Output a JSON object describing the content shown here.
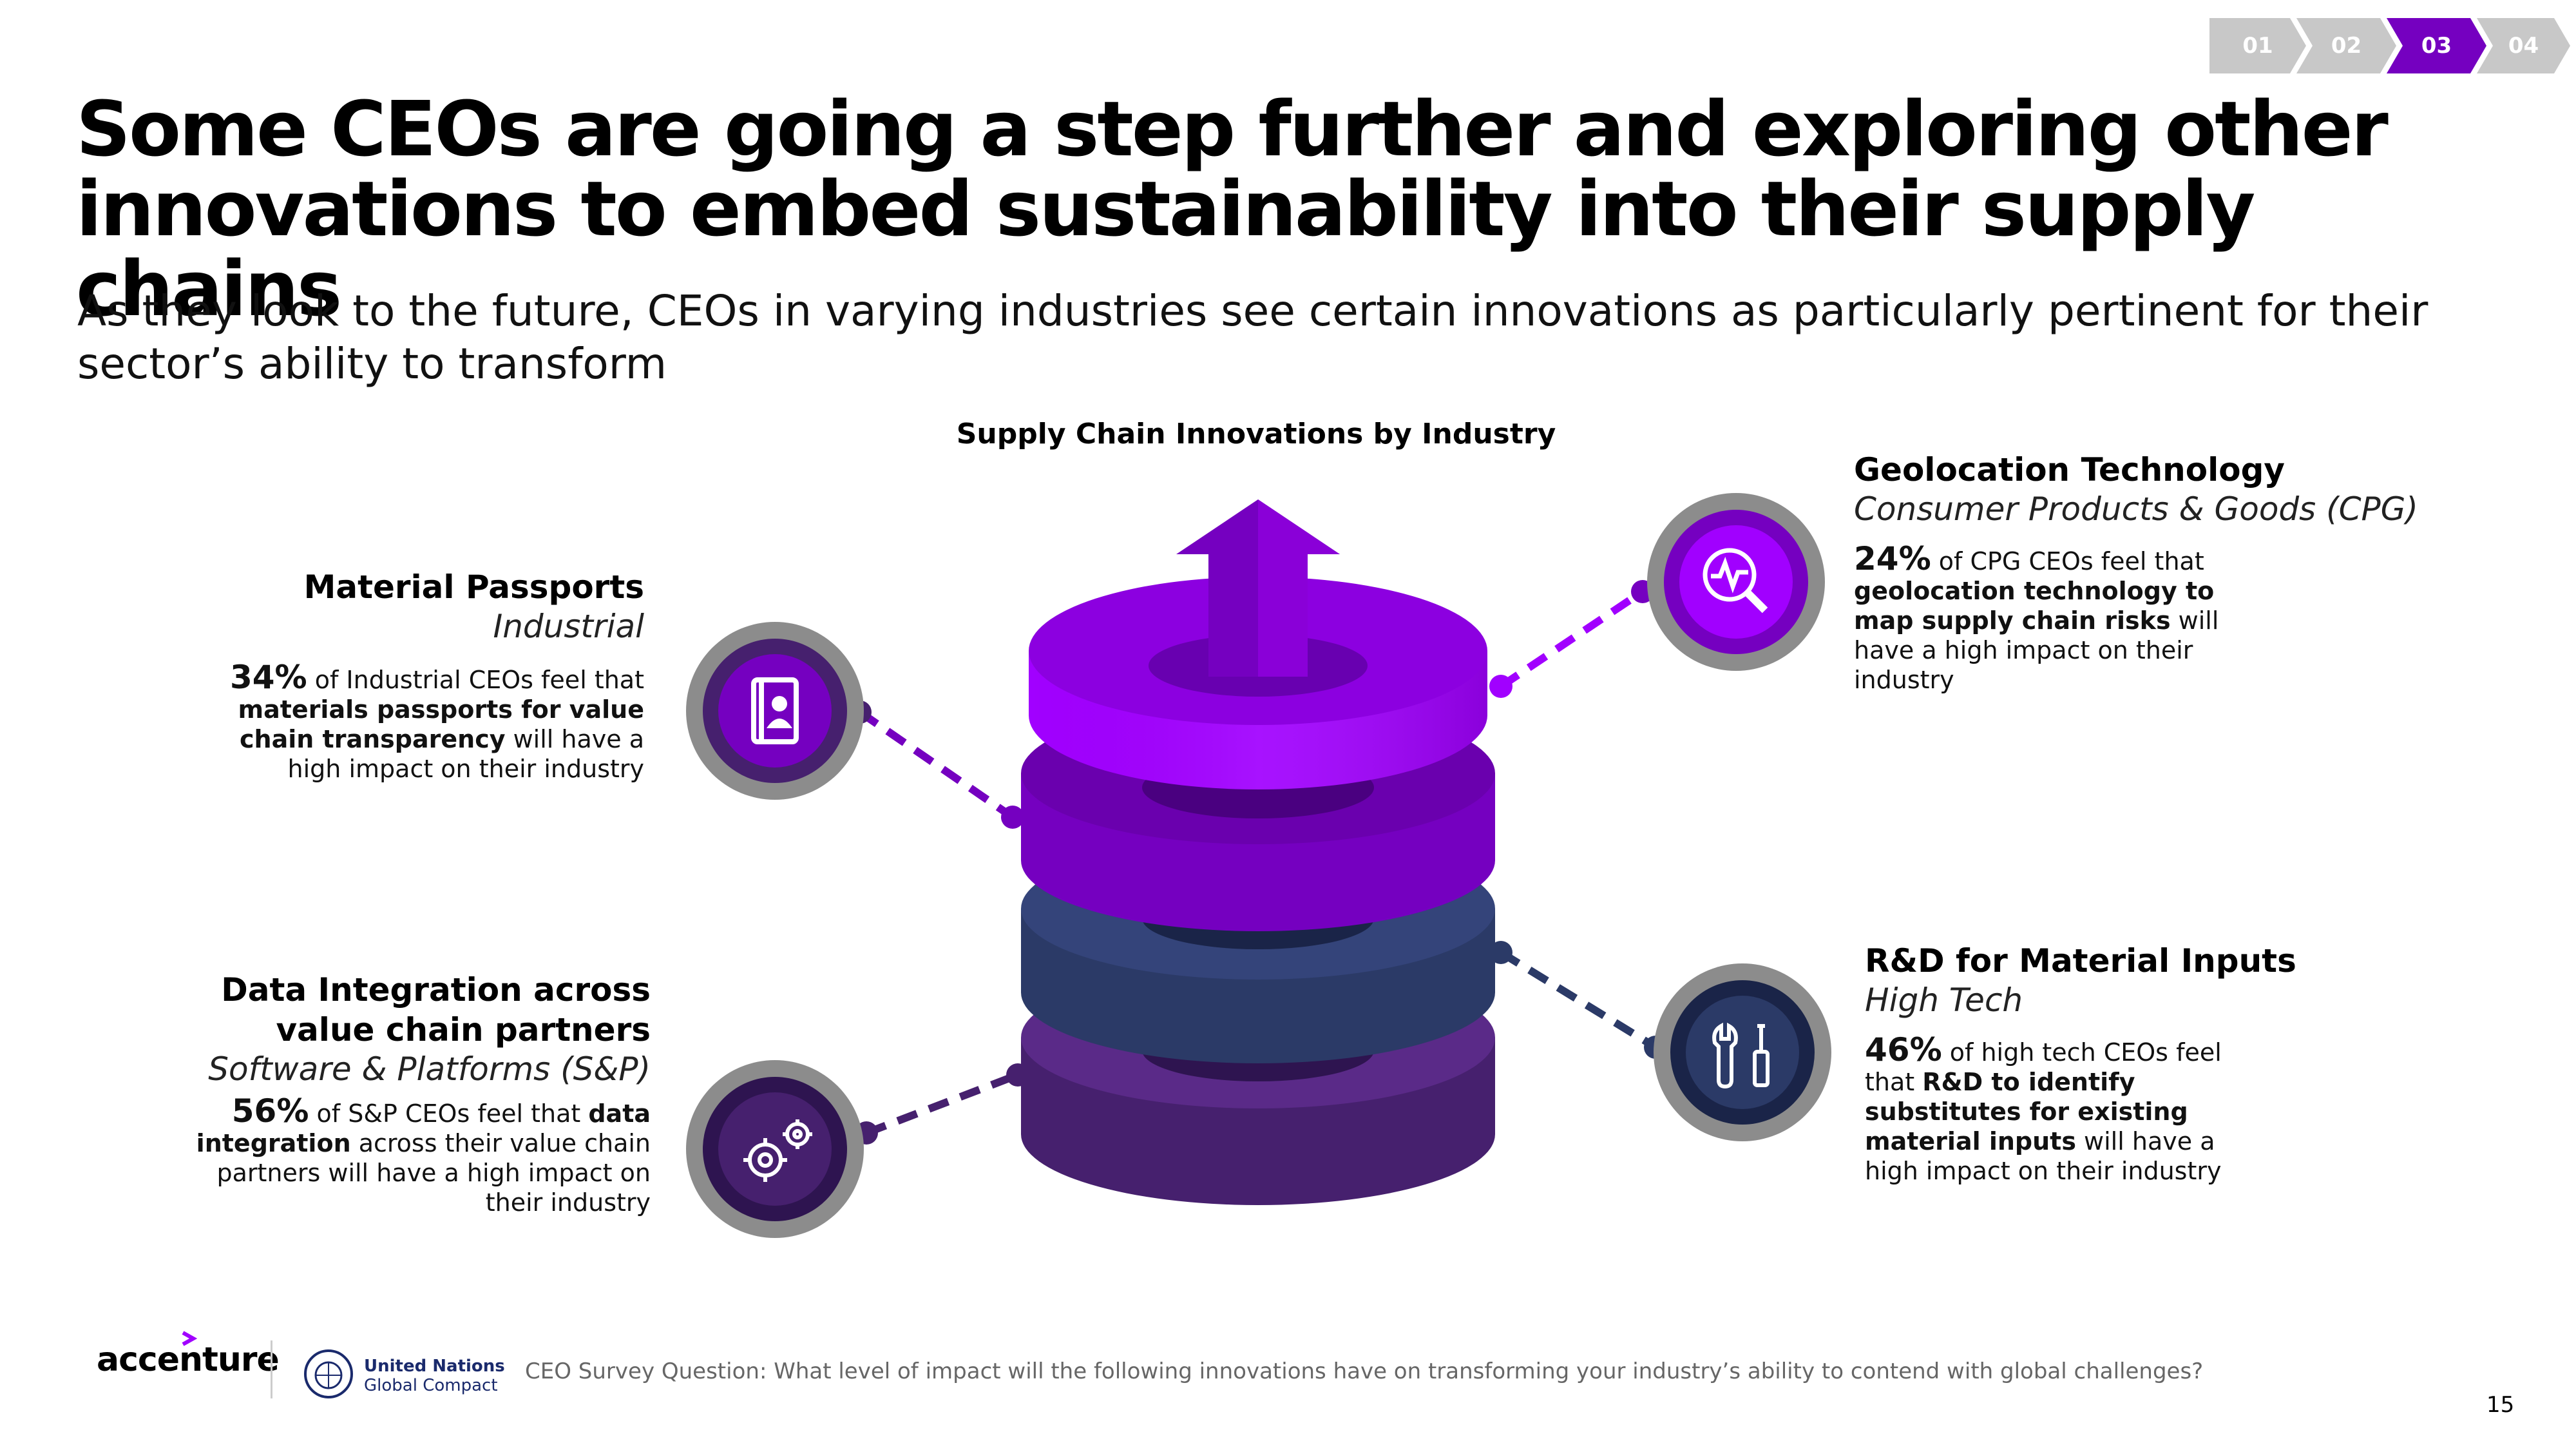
{
  "nav": {
    "steps": [
      "01",
      "02",
      "03",
      "04"
    ],
    "active": "03",
    "colors": {
      "inactive": "#c8c8c8",
      "active": "#7500c0"
    }
  },
  "header": {
    "title_line1": "Some CEOs are going a step further and exploring other",
    "title_line2": "innovations to embed sustainability into their supply chains",
    "subtitle_line1": "As they look to the future, CEOs in varying industries see certain innovations as particularly pertinent for their",
    "subtitle_line2": "sector’s ability to transform"
  },
  "diagram": {
    "title": "Supply Chain Innovations by Industry",
    "layer_colors": [
      "#a100ff",
      "#7500c0",
      "#2b3a67",
      "#46206e"
    ]
  },
  "cards": {
    "material_passports": {
      "title": "Material Passports",
      "industry": "Industrial",
      "pct": "34%",
      "text1": " of Industrial CEOs feel that",
      "bold": "materials passports for value chain transparency",
      "text2": " will have a high impact on their industry",
      "icon": "passport-icon"
    },
    "data_integration": {
      "title_line1": "Data Integration across",
      "title_line2": "value chain partners",
      "industry": "Software & Platforms (S&P)",
      "pct": "56%",
      "text1": " of S&P CEOs feel that ",
      "bold": "data integration",
      "text2": " across their value chain partners will have a high impact on their industry",
      "icon": "gears-icon"
    },
    "geolocation": {
      "title": "Geolocation Technology",
      "industry": "Consumer Products & Goods (CPG)",
      "pct": "24%",
      "text1": " of CPG CEOs feel that ",
      "bold": "geolocation technology to map supply chain risks",
      "text2": " will have a high impact on their industry",
      "icon": "magnifier-pulse-icon"
    },
    "rnd": {
      "title": "R&D for Material Inputs",
      "industry": "High Tech",
      "pct": "46%",
      "text1": " of high tech CEOs feel that ",
      "bold": "R&D to identify substitutes for existing material inputs",
      "text2": " will have a high impact on their industry",
      "icon": "tools-icon"
    }
  },
  "footer": {
    "brand": "accenture",
    "partner_line1": "United Nations",
    "partner_line2": "Global Compact",
    "question": "CEO Survey Question: What level of impact will the following innovations have on transforming your industry’s ability to contend with global challenges?",
    "page": "15"
  }
}
